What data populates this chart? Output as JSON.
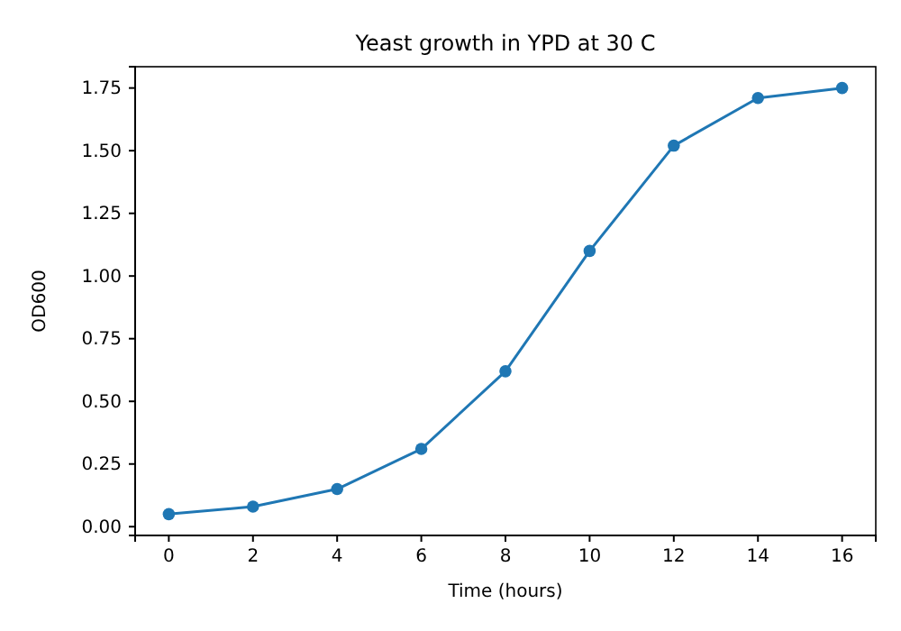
{
  "chart_data": {
    "type": "line",
    "title": "Yeast growth in YPD at 30 C",
    "xlabel": "Time (hours)",
    "ylabel": "OD600",
    "x": [
      0,
      2,
      4,
      6,
      8,
      10,
      12,
      14,
      16
    ],
    "series": [
      {
        "color": "#1f77b4",
        "values": [
          0.05,
          0.08,
          0.15,
          0.31,
          0.62,
          1.1,
          1.52,
          1.71,
          1.75
        ]
      }
    ],
    "xlim": [
      -0.8,
      16.8
    ],
    "ylim": [
      -0.035,
      1.835
    ],
    "xticks": [
      0,
      2,
      4,
      6,
      8,
      10,
      12,
      14,
      16
    ],
    "yticks": [
      {
        "value": 0,
        "label": "0.00"
      },
      {
        "value": 0.25,
        "label": "0.25"
      },
      {
        "value": 0.5,
        "label": "0.50"
      },
      {
        "value": 0.75,
        "label": "0.75"
      },
      {
        "value": 1,
        "label": "1.00"
      },
      {
        "value": 1.25,
        "label": "1.25"
      },
      {
        "value": 1.5,
        "label": "1.50"
      },
      {
        "value": 1.75,
        "label": "1.75"
      }
    ],
    "marker": "circle",
    "line_style": "solid"
  }
}
